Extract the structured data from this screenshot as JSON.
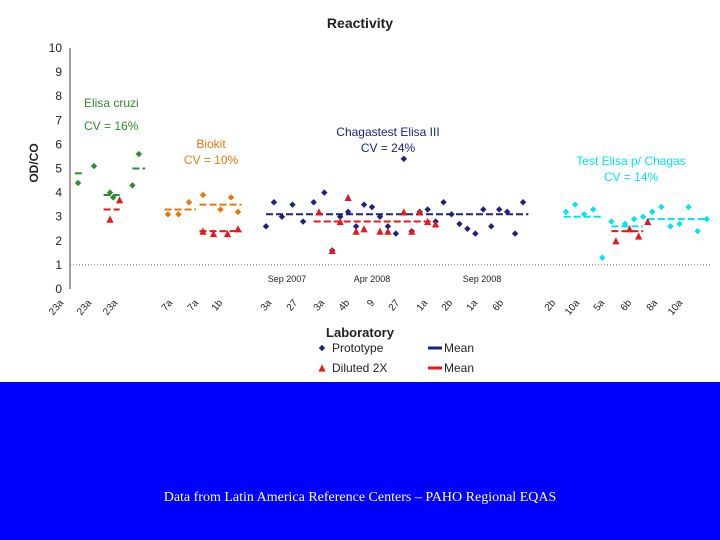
{
  "chart_data": {
    "type": "scatter",
    "title": "Reactivity",
    "ylabel": "OD/CO",
    "xlabel": "Laboratory",
    "ylim": [
      0,
      10
    ],
    "yticks": [
      0,
      1,
      2,
      3,
      4,
      5,
      6,
      7,
      8,
      9,
      10
    ],
    "cutoff": 1,
    "categories": [
      "23a",
      "23a",
      "23a",
      "7a",
      "7a",
      "1b",
      "3a",
      "27",
      "3a",
      "4b",
      "9",
      "27",
      "1a",
      "2b",
      "1a",
      "6b",
      "2b",
      "10a",
      "5a",
      "6b",
      "8a",
      "10a"
    ],
    "groups": [
      {
        "name": "Elisa cruzi",
        "cv": "CV = 16%",
        "color": "#2e8b2e",
        "prototype": [
          [
            0,
            4.4
          ],
          [
            1,
            5.1
          ],
          [
            2,
            4.0
          ],
          [
            2.2,
            3.8
          ],
          [
            3.4,
            4.3
          ],
          [
            3.8,
            5.6
          ]
        ],
        "diluted": [
          [
            2,
            2.9
          ],
          [
            2.6,
            3.7
          ]
        ],
        "mean_proto": [
          [
            -0.2,
            0.4,
            4.8
          ],
          [
            1.6,
            2.6,
            3.9
          ],
          [
            3.4,
            4.2,
            5.0
          ]
        ],
        "mean_dil": [
          [
            1.6,
            2.6,
            3.3
          ]
        ]
      },
      {
        "name": "Biokit",
        "cv": "CV = 10%",
        "color": "#e8760f",
        "prototype": [
          [
            0,
            3.1
          ],
          [
            0.3,
            3.1
          ],
          [
            0.6,
            3.6
          ],
          [
            1.0,
            3.9
          ],
          [
            1.5,
            3.3
          ],
          [
            1.8,
            3.8
          ],
          [
            2.0,
            3.2
          ]
        ],
        "diluted": [
          [
            1.0,
            2.4
          ],
          [
            1.3,
            2.3
          ],
          [
            1.7,
            2.3
          ],
          [
            2.0,
            2.5
          ]
        ],
        "mean_proto": [
          [
            -0.1,
            0.8,
            3.3
          ],
          [
            0.9,
            2.1,
            3.5
          ]
        ],
        "mean_dil": [
          [
            0.9,
            2.1,
            2.4
          ]
        ]
      },
      {
        "name": "Chagastest Elisa III",
        "cv": "CV = 24%",
        "color": "#1a237e",
        "prototype": [
          [
            0,
            2.6
          ],
          [
            0.3,
            3.6
          ],
          [
            0.6,
            3.0
          ],
          [
            1.0,
            3.5
          ],
          [
            1.4,
            2.8
          ],
          [
            1.8,
            3.6
          ],
          [
            2.2,
            4.0
          ],
          [
            2.5,
            1.6
          ],
          [
            2.8,
            3.0
          ],
          [
            3.1,
            3.2
          ],
          [
            3.4,
            2.6
          ],
          [
            3.7,
            3.5
          ],
          [
            4.0,
            3.4
          ],
          [
            4.3,
            3.0
          ],
          [
            4.6,
            2.6
          ],
          [
            4.9,
            2.3
          ],
          [
            5.2,
            5.4
          ],
          [
            5.5,
            2.4
          ],
          [
            5.8,
            3.2
          ],
          [
            6.1,
            3.3
          ],
          [
            6.4,
            2.8
          ],
          [
            6.7,
            3.6
          ],
          [
            7.0,
            3.1
          ],
          [
            7.3,
            2.7
          ],
          [
            7.6,
            2.5
          ],
          [
            7.9,
            2.3
          ],
          [
            8.2,
            3.3
          ],
          [
            8.5,
            2.6
          ],
          [
            8.8,
            3.3
          ],
          [
            9.1,
            3.2
          ],
          [
            9.4,
            2.3
          ],
          [
            9.7,
            3.6
          ]
        ],
        "diluted": [
          [
            2.0,
            3.2
          ],
          [
            2.5,
            1.6
          ],
          [
            2.8,
            2.8
          ],
          [
            3.1,
            3.8
          ],
          [
            3.4,
            2.4
          ],
          [
            3.7,
            2.5
          ],
          [
            4.3,
            2.4
          ],
          [
            4.6,
            2.4
          ],
          [
            5.2,
            3.2
          ],
          [
            5.5,
            2.4
          ],
          [
            5.8,
            3.2
          ],
          [
            6.1,
            2.8
          ],
          [
            6.4,
            2.7
          ]
        ],
        "mean_proto": [
          [
            0,
            9.9,
            3.1
          ]
        ],
        "mean_dil": [
          [
            1.8,
            6.5,
            2.8
          ]
        ]
      },
      {
        "name": "Test Elisa p/ Chagas",
        "cv": "CV = 14%",
        "color": "#00e5ee",
        "prototype": [
          [
            0,
            3.2
          ],
          [
            0.4,
            3.5
          ],
          [
            0.8,
            3.1
          ],
          [
            1.2,
            3.3
          ],
          [
            1.6,
            1.3
          ],
          [
            2.0,
            2.8
          ],
          [
            2.6,
            2.7
          ],
          [
            3.0,
            2.9
          ],
          [
            3.4,
            3.0
          ],
          [
            3.8,
            3.2
          ],
          [
            4.2,
            3.4
          ],
          [
            4.6,
            2.6
          ],
          [
            5.0,
            2.7
          ],
          [
            5.4,
            3.4
          ],
          [
            5.8,
            2.4
          ],
          [
            6.2,
            2.9
          ]
        ],
        "diluted": [
          [
            2.2,
            2.0
          ],
          [
            2.8,
            2.5
          ],
          [
            3.2,
            2.2
          ],
          [
            3.6,
            2.8
          ]
        ],
        "mean_proto": [
          [
            -0.1,
            1.6,
            3.0
          ],
          [
            2.0,
            3.4,
            2.6
          ],
          [
            3.6,
            6.3,
            2.9
          ]
        ],
        "mean_dil": [
          [
            2.0,
            3.4,
            2.4
          ]
        ]
      }
    ],
    "annotations": [
      "Sep 2007",
      "Apr 2008",
      "Sep 2008"
    ],
    "legend": [
      {
        "label": "Prototype",
        "marker": "diamond",
        "color": "#1a237e"
      },
      {
        "label": "Mean",
        "marker": "dash",
        "color": "#1a237e"
      },
      {
        "label": "Diluted 2X",
        "marker": "triangle",
        "color": "#e31a1c"
      },
      {
        "label": "Mean",
        "marker": "dash",
        "color": "#e31a1c"
      }
    ],
    "diluted_color": "#e31a1c"
  },
  "footer": {
    "caption": "Data from Latin America Reference Centers – PAHO Regional EQAS"
  }
}
